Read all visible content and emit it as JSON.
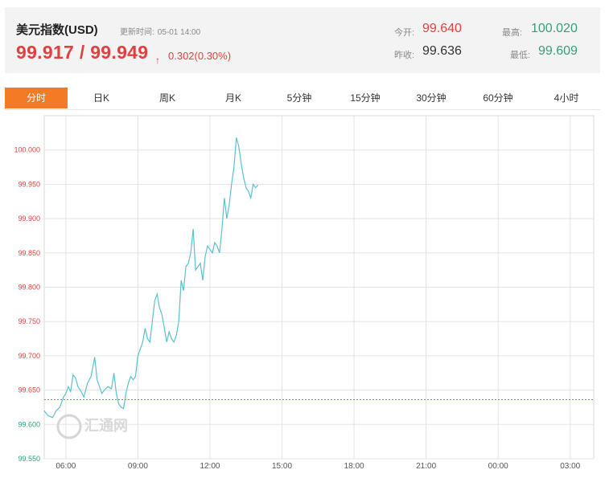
{
  "header": {
    "title": "美元指数(USD)",
    "update_label": "更新时间:",
    "update_time": "05-01 14:00",
    "price": "99.917 / 99.949",
    "arrow": "↑",
    "change": "0.302(0.30%)",
    "open_label": "今开:",
    "open_value": "99.640",
    "prev_close_label": "昨收:",
    "prev_close_value": "99.636",
    "high_label": "最高:",
    "high_value": "100.020",
    "low_label": "最低:",
    "low_value": "99.609"
  },
  "tabs": [
    {
      "label": "分时",
      "active": true
    },
    {
      "label": "日K",
      "active": false
    },
    {
      "label": "周K",
      "active": false
    },
    {
      "label": "月K",
      "active": false
    },
    {
      "label": "5分钟",
      "active": false
    },
    {
      "label": "15分钟",
      "active": false
    },
    {
      "label": "30分钟",
      "active": false
    },
    {
      "label": "60分钟",
      "active": false
    },
    {
      "label": "4小时",
      "active": false
    }
  ],
  "watermark": "汇通网",
  "chart_data": {
    "type": "line",
    "ylim": [
      99.55,
      100.05
    ],
    "yticks": [
      "100.000",
      "99.950",
      "99.900",
      "99.850",
      "99.800",
      "99.750",
      "99.700",
      "99.650",
      "99.600",
      "99.550"
    ],
    "ytick_values": [
      100.0,
      99.95,
      99.9,
      99.85,
      99.8,
      99.75,
      99.7,
      99.65,
      99.6,
      99.55
    ],
    "xticks": [
      "06:00",
      "09:00",
      "12:00",
      "15:00",
      "18:00",
      "21:00",
      "00:00",
      "03:00"
    ],
    "xtick_values": [
      6,
      9,
      12,
      15,
      18,
      21,
      24,
      27
    ],
    "xlim": [
      5.1,
      27.98
    ],
    "reference_line": 99.636,
    "colors": {
      "line": "#5cc0cf",
      "reference": "#e8603c",
      "grid": "#e3e3e3"
    },
    "series": [
      {
        "x": [
          5.1,
          5.2,
          5.3,
          5.45,
          5.6,
          5.75,
          5.9,
          6.0,
          6.1,
          6.2,
          6.3,
          6.4,
          6.5,
          6.6,
          6.75,
          6.9,
          7.05,
          7.2,
          7.3,
          7.4,
          7.5,
          7.6,
          7.75,
          7.9,
          8.0,
          8.1,
          8.2,
          8.3,
          8.4,
          8.5,
          8.6,
          8.7,
          8.8,
          8.9,
          9.0,
          9.1,
          9.2,
          9.3,
          9.4,
          9.5,
          9.6,
          9.7,
          9.8,
          9.9,
          10.0,
          10.1,
          10.2,
          10.3,
          10.4,
          10.5,
          10.6,
          10.7,
          10.8,
          10.9,
          11.0,
          11.1,
          11.2,
          11.3,
          11.4,
          11.5,
          11.6,
          11.7,
          11.8,
          11.9,
          12.0,
          12.1,
          12.2,
          12.3,
          12.4,
          12.5,
          12.6,
          12.7,
          12.8,
          12.9,
          13.0,
          13.1,
          13.2,
          13.3,
          13.4,
          13.5,
          13.6,
          13.7,
          13.8,
          13.9,
          14.0
        ],
        "y": [
          99.62,
          99.615,
          99.612,
          99.61,
          99.62,
          99.625,
          99.64,
          99.645,
          99.655,
          99.648,
          99.672,
          99.668,
          99.655,
          99.65,
          99.64,
          99.66,
          99.67,
          99.698,
          99.665,
          99.655,
          99.645,
          99.65,
          99.655,
          99.652,
          99.675,
          99.645,
          99.63,
          99.625,
          99.623,
          99.645,
          99.66,
          99.67,
          99.665,
          99.67,
          99.7,
          99.71,
          99.72,
          99.74,
          99.725,
          99.72,
          99.75,
          99.78,
          99.79,
          99.77,
          99.76,
          99.74,
          99.72,
          99.735,
          99.725,
          99.72,
          99.73,
          99.75,
          99.81,
          99.795,
          99.83,
          99.835,
          99.85,
          99.885,
          99.825,
          99.83,
          99.835,
          99.81,
          99.845,
          99.86,
          99.855,
          99.85,
          99.865,
          99.86,
          99.85,
          99.885,
          99.93,
          99.9,
          99.92,
          99.95,
          99.975,
          100.018,
          100.005,
          99.98,
          99.96,
          99.945,
          99.94,
          99.93,
          99.95,
          99.945,
          99.949
        ]
      }
    ]
  }
}
